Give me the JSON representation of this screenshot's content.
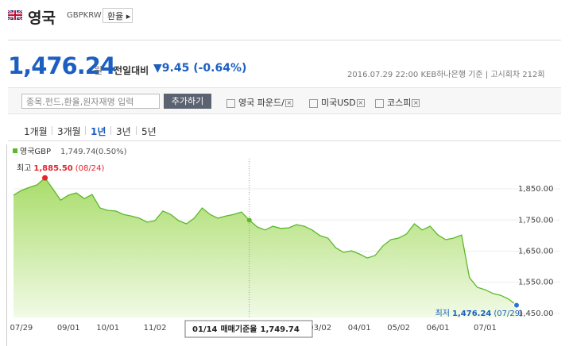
{
  "header": {
    "title": "영국",
    "code": "GBPKRW",
    "button": "환율"
  },
  "quote": {
    "price": "1,476.24",
    "unit": "원",
    "change_label": "전일대비",
    "change": "▼9.45",
    "change_pct": "(-0.64%)",
    "datetime": "2016.07.29 22:00",
    "source": "KEB하나은행 기준",
    "round": "고시회차 212회"
  },
  "compare": {
    "placeholder": "종목.펀드,환율,원자재명 입력",
    "button": "추가하기",
    "items": [
      "영국 파운드/",
      "미국USD",
      "코스피"
    ]
  },
  "periods": {
    "items": [
      "1개월",
      "3개월",
      "1년",
      "3년",
      "5년"
    ],
    "selected": 2
  },
  "chart_data": {
    "type": "area",
    "legend_value": "1,749.74",
    "legend_change": "(0.50%)",
    "high": {
      "label": "최고",
      "value": "1,885.50",
      "date": "(08/24)"
    },
    "low": {
      "label": "최저",
      "value": "1,476.24",
      "date": "(07/29)"
    },
    "tooltip": {
      "date": "01/14",
      "label": "매매기준율",
      "value": "1,749.74"
    },
    "categories": [
      null,
      "07/29",
      null,
      null,
      null,
      null,
      null,
      "09/01",
      null,
      null,
      null,
      null,
      "10/01",
      null,
      null,
      null,
      null,
      null,
      "11/02",
      null,
      null,
      null,
      null,
      null,
      null,
      null,
      null,
      null,
      null,
      null,
      null,
      null,
      null,
      null,
      null,
      null,
      null,
      null,
      null,
      "03/02",
      null,
      null,
      null,
      null,
      "04/01",
      null,
      null,
      null,
      null,
      "05/02",
      null,
      null,
      null,
      null,
      "06/01",
      null,
      null,
      null,
      null,
      null,
      "07/01",
      null,
      null,
      null,
      null
    ],
    "series": [
      {
        "name": "영국GBP",
        "color": "#5cb82a",
        "values": [
          1830,
          1845,
          1855,
          1863,
          1885.5,
          1850,
          1814,
          1830,
          1837,
          1819,
          1832,
          1789,
          1781,
          1779,
          1768,
          1763,
          1756,
          1743,
          1748,
          1779,
          1768,
          1748,
          1738,
          1756,
          1789,
          1768,
          1756,
          1763,
          1768,
          1776,
          1749.74,
          1728,
          1718,
          1730,
          1723,
          1725,
          1735,
          1730,
          1718,
          1700,
          1692,
          1661,
          1646,
          1651,
          1641,
          1628,
          1636,
          1667,
          1687,
          1692,
          1705,
          1738,
          1718,
          1730,
          1702,
          1687,
          1692,
          1702,
          1565,
          1534,
          1526,
          1514,
          1508,
          1496,
          1476.24
        ]
      }
    ],
    "ylim": [
      1437,
      1947
    ],
    "yticks": [
      {
        "value": 1450,
        "label": "1,450.00"
      },
      {
        "value": 1550,
        "label": "1,550.00"
      },
      {
        "value": 1650,
        "label": "1,650.00"
      },
      {
        "value": 1750,
        "label": "1,750.00"
      },
      {
        "value": 1850,
        "label": "1,850.00"
      }
    ],
    "grid": true
  }
}
